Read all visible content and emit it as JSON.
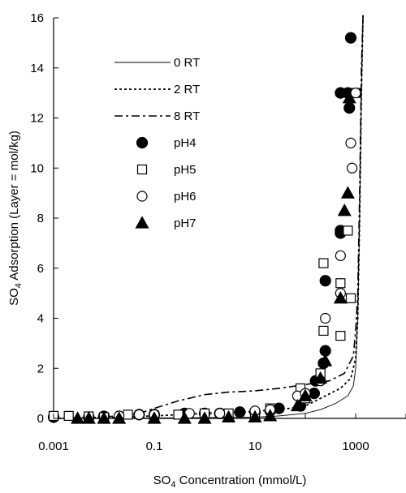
{
  "chart_data": {
    "type": "scatter",
    "title": "",
    "xlabel": {
      "pre": "SO",
      "sub": "4",
      "post": " Concentration (mmol/L)"
    },
    "ylabel": {
      "pre": "SO",
      "sub": "4",
      "post": " Adsorption (Layer = mol/kg)"
    },
    "x_scale": "log",
    "xlim": [
      0.001,
      10000
    ],
    "ylim": [
      0,
      16
    ],
    "x_ticks": [
      {
        "value": 0.001,
        "label": "0.001"
      },
      {
        "value": 0.1,
        "label": "0.1"
      },
      {
        "value": 10,
        "label": "10"
      },
      {
        "value": 1000,
        "label": "1000"
      }
    ],
    "y_ticks": [
      {
        "value": 0,
        "label": "0"
      },
      {
        "value": 2,
        "label": "2"
      },
      {
        "value": 4,
        "label": "4"
      },
      {
        "value": 6,
        "label": "6"
      },
      {
        "value": 8,
        "label": "8"
      },
      {
        "value": 10,
        "label": "10"
      },
      {
        "value": 12,
        "label": "12"
      },
      {
        "value": 14,
        "label": "14"
      },
      {
        "value": 16,
        "label": "16"
      }
    ],
    "grid": false,
    "legend_position": "top-left",
    "lines": [
      {
        "name": "0 RT",
        "dash": "solid",
        "points": [
          [
            0.001,
            0
          ],
          [
            0.01,
            0.01
          ],
          [
            0.1,
            0.02
          ],
          [
            1,
            0.03
          ],
          [
            10,
            0.05
          ],
          [
            30,
            0.1
          ],
          [
            100,
            0.2
          ],
          [
            200,
            0.35
          ],
          [
            400,
            0.6
          ],
          [
            700,
            0.9
          ],
          [
            900,
            1.3
          ],
          [
            1000,
            2
          ],
          [
            1100,
            4
          ],
          [
            1200,
            8
          ],
          [
            1300,
            13
          ],
          [
            1400,
            16.2
          ]
        ]
      },
      {
        "name": "2 RT",
        "dash": "dotted",
        "points": [
          [
            0.001,
            0
          ],
          [
            0.01,
            0.03
          ],
          [
            0.1,
            0.1
          ],
          [
            1,
            0.2
          ],
          [
            10,
            0.28
          ],
          [
            50,
            0.4
          ],
          [
            100,
            0.5
          ],
          [
            200,
            0.8
          ],
          [
            500,
            1.2
          ],
          [
            800,
            1.6
          ],
          [
            1000,
            2.4
          ],
          [
            1100,
            4
          ],
          [
            1200,
            8
          ],
          [
            1300,
            13
          ],
          [
            1400,
            16.2
          ]
        ]
      },
      {
        "name": "8 RT",
        "dash": "dashdot",
        "points": [
          [
            0.001,
            0
          ],
          [
            0.01,
            0.05
          ],
          [
            0.05,
            0.2
          ],
          [
            0.1,
            0.4
          ],
          [
            0.3,
            0.7
          ],
          [
            1,
            0.95
          ],
          [
            3,
            1.05
          ],
          [
            10,
            1.1
          ],
          [
            30,
            1.2
          ],
          [
            100,
            1.35
          ],
          [
            300,
            1.5
          ],
          [
            600,
            1.8
          ],
          [
            900,
            2.5
          ],
          [
            1000,
            3.5
          ],
          [
            1100,
            5
          ],
          [
            1200,
            9
          ],
          [
            1300,
            14
          ],
          [
            1400,
            16.2
          ]
        ]
      }
    ],
    "series": [
      {
        "name": "pH4",
        "marker": "circle-filled",
        "points": [
          [
            0.001,
            0.05
          ],
          [
            0.005,
            0.05
          ],
          [
            0.01,
            0.08
          ],
          [
            0.05,
            0.15
          ],
          [
            0.1,
            0.15
          ],
          [
            0.4,
            0.2
          ],
          [
            1,
            0.2
          ],
          [
            2,
            0.2
          ],
          [
            5,
            0.25
          ],
          [
            10,
            0.25
          ],
          [
            20,
            0.3
          ],
          [
            30,
            0.4
          ],
          [
            80,
            0.5
          ],
          [
            150,
            1.0
          ],
          [
            160,
            1.5
          ],
          [
            230,
            2.2
          ],
          [
            250,
            2.7
          ],
          [
            250,
            5.5
          ],
          [
            500,
            7.4
          ],
          [
            500,
            7.5
          ],
          [
            500,
            13.0
          ],
          [
            700,
            13.0
          ],
          [
            750,
            12.4
          ],
          [
            800,
            15.2
          ]
        ]
      },
      {
        "name": "pH5",
        "marker": "square-open",
        "points": [
          [
            0.001,
            0.1
          ],
          [
            0.002,
            0.1
          ],
          [
            0.005,
            0.08
          ],
          [
            0.01,
            0.05
          ],
          [
            0.03,
            0.15
          ],
          [
            0.1,
            0.1
          ],
          [
            0.3,
            0.15
          ],
          [
            1,
            0.2
          ],
          [
            3,
            0.2
          ],
          [
            10,
            0.2
          ],
          [
            20,
            0.4
          ],
          [
            80,
            1.2
          ],
          [
            100,
            0.8
          ],
          [
            200,
            1.8
          ],
          [
            230,
            3.5
          ],
          [
            230,
            6.2
          ],
          [
            500,
            3.3
          ],
          [
            500,
            5.4
          ],
          [
            700,
            7.5
          ],
          [
            800,
            4.8
          ],
          [
            1000,
            13.0
          ]
        ]
      },
      {
        "name": "pH6",
        "marker": "circle-open",
        "points": [
          [
            0.02,
            0.1
          ],
          [
            0.05,
            0.15
          ],
          [
            0.1,
            0.15
          ],
          [
            0.5,
            0.2
          ],
          [
            2,
            0.2
          ],
          [
            10,
            0.3
          ],
          [
            20,
            0.35
          ],
          [
            70,
            0.9
          ],
          [
            100,
            1.0
          ],
          [
            200,
            1.5
          ],
          [
            250,
            4.0
          ],
          [
            500,
            6.5
          ],
          [
            500,
            5.0
          ],
          [
            800,
            11.0
          ],
          [
            850,
            10.0
          ],
          [
            1000,
            13.0
          ]
        ]
      },
      {
        "name": "pH7",
        "marker": "triangle-filled",
        "points": [
          [
            0.003,
            0
          ],
          [
            0.005,
            0
          ],
          [
            0.01,
            0
          ],
          [
            0.02,
            0
          ],
          [
            0.1,
            0
          ],
          [
            0.4,
            0
          ],
          [
            1,
            0
          ],
          [
            3,
            0.05
          ],
          [
            10,
            0.05
          ],
          [
            20,
            0.1
          ],
          [
            70,
            0.5
          ],
          [
            100,
            0.9
          ],
          [
            200,
            1.6
          ],
          [
            250,
            2.3
          ],
          [
            500,
            4.8
          ],
          [
            600,
            8.3
          ],
          [
            700,
            9.0
          ],
          [
            750,
            12.8
          ]
        ]
      }
    ]
  }
}
